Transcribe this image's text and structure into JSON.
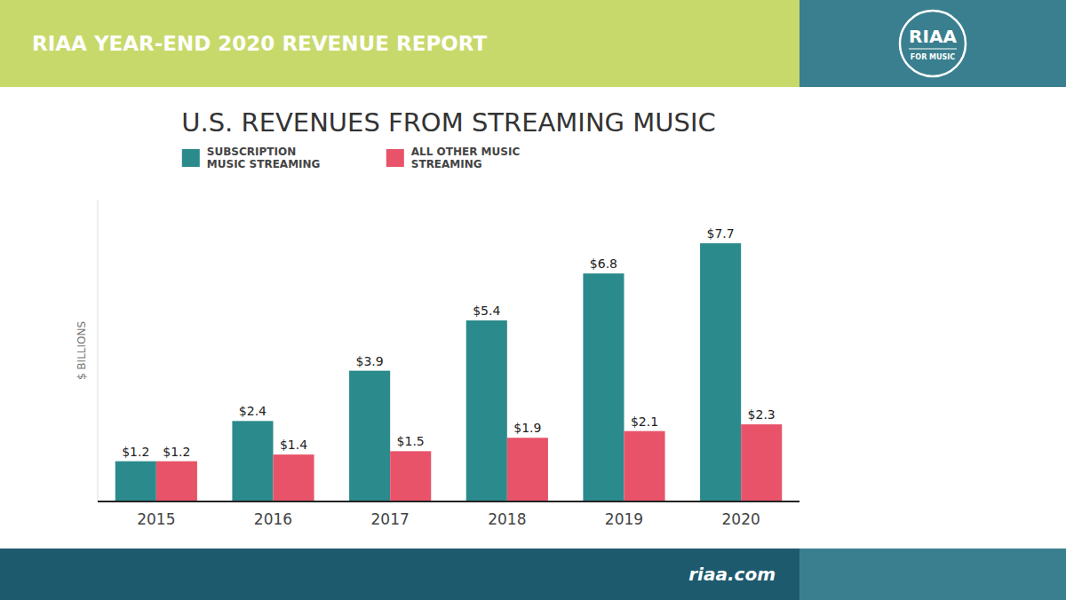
{
  "chart_data": {
    "type": "bar",
    "title": "U.S. REVENUES FROM STREAMING MUSIC",
    "ylabel": "$ BILLIONS",
    "annotations": [
      "RIAA YEAR-END 2020 REVENUE REPORT",
      "riaa.com",
      "RIAA",
      "FOR MUSIC"
    ],
    "categories": [
      "2015",
      "2016",
      "2017",
      "2018",
      "2019",
      "2020"
    ],
    "series": [
      {
        "name": "SUBSCRIPTION\nMUSIC STREAMING",
        "color": "#2b8a8c",
        "values": [
          1.2,
          2.4,
          3.9,
          5.4,
          6.8,
          7.7
        ],
        "value_labels": [
          "$1.2",
          "$2.4",
          "$3.9",
          "$5.4",
          "$6.8",
          "$7.7"
        ]
      },
      {
        "name": "ALL OTHER MUSIC\nSTREAMING",
        "color": "#e8536a",
        "values": [
          1.2,
          1.4,
          1.5,
          1.9,
          2.1,
          2.3
        ],
        "value_labels": [
          "$1.2",
          "$1.4",
          "$1.5",
          "$1.9",
          "$2.1",
          "$2.3"
        ]
      }
    ],
    "ylim": [
      0,
      9.0
    ],
    "tick_labels": "x",
    "data_labels": true,
    "grid": false,
    "legend": "top"
  }
}
